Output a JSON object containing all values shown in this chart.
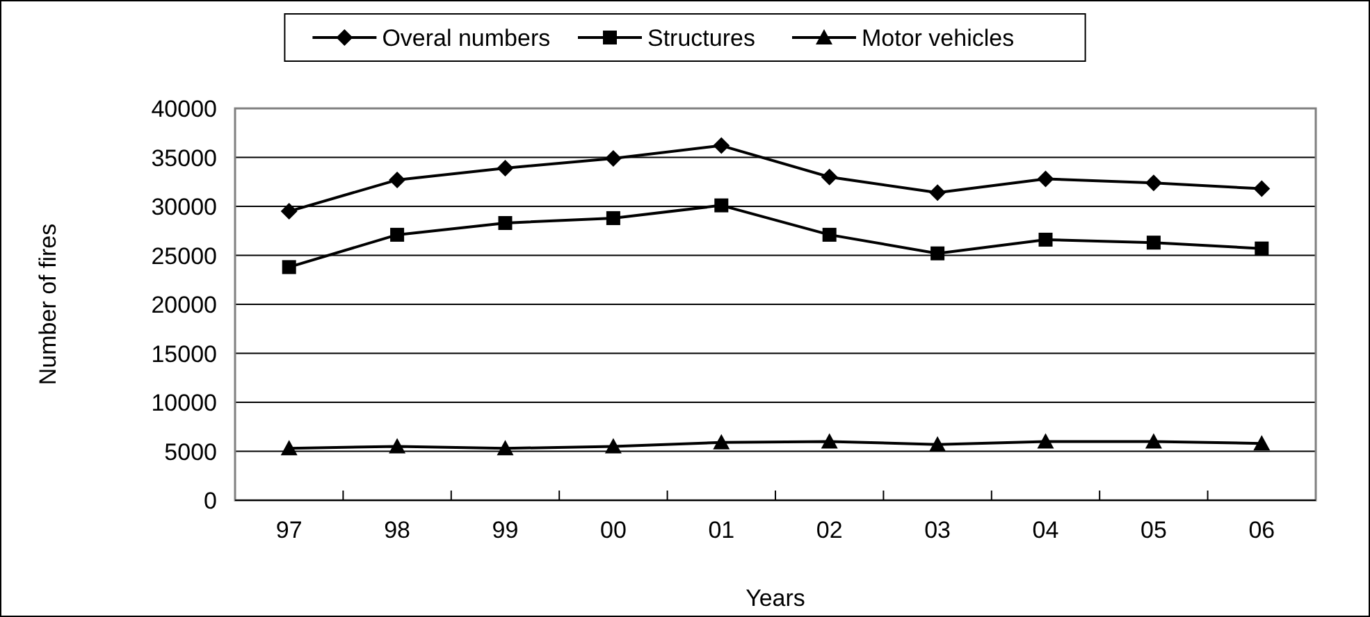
{
  "chart_data": {
    "type": "line",
    "xlabel": "Years",
    "ylabel": "Number of fires",
    "categories": [
      "97",
      "98",
      "99",
      "00",
      "01",
      "02",
      "03",
      "04",
      "05",
      "06"
    ],
    "ylim": [
      0,
      40000
    ],
    "yticks": [
      0,
      5000,
      10000,
      15000,
      20000,
      25000,
      30000,
      35000,
      40000
    ],
    "grid": "y",
    "legend": "top",
    "line_style": "solid",
    "series": [
      {
        "name": "Overal numbers",
        "color": "#000000",
        "marker": "diamond",
        "values": [
          29500,
          32700,
          33900,
          34900,
          36200,
          33000,
          31400,
          32800,
          32400,
          31800
        ]
      },
      {
        "name": "Structures",
        "color": "#000000",
        "marker": "square",
        "values": [
          23800,
          27100,
          28300,
          28800,
          30100,
          27100,
          25200,
          26600,
          26300,
          25700
        ]
      },
      {
        "name": "Motor vehicles",
        "color": "#000000",
        "marker": "triangle",
        "values": [
          5300,
          5500,
          5300,
          5500,
          5900,
          6000,
          5700,
          6000,
          6000,
          5800
        ]
      }
    ]
  }
}
